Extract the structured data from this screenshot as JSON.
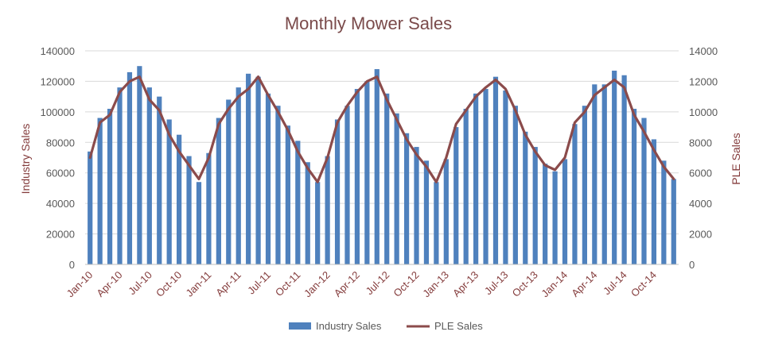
{
  "chart_data": {
    "type": "bar",
    "title": "Monthly Mower Sales",
    "ylabel": "Industry Sales",
    "y2label": "PLE Sales",
    "ylim": [
      0,
      140000
    ],
    "y2lim": [
      0,
      14000
    ],
    "yticks": [
      "0",
      "20000",
      "40000",
      "60000",
      "80000",
      "100000",
      "120000",
      "140000"
    ],
    "y2ticks": [
      "0",
      "2000",
      "4000",
      "6000",
      "8000",
      "10000",
      "12000",
      "14000"
    ],
    "x_tick_labels": [
      "Jan-10",
      "Apr-10",
      "Jul-10",
      "Oct-10",
      "Jan-11",
      "Apr-11",
      "Jul-11",
      "Oct-11",
      "Jan-12",
      "Apr-12",
      "Jul-12",
      "Oct-12",
      "Jan-13",
      "Apr-13",
      "Jul-13",
      "Oct-13",
      "Jan-14",
      "Apr-14",
      "Jul-14",
      "Oct-14"
    ],
    "categories": [
      "Jan-10",
      "Feb-10",
      "Mar-10",
      "Apr-10",
      "May-10",
      "Jun-10",
      "Jul-10",
      "Aug-10",
      "Sep-10",
      "Oct-10",
      "Nov-10",
      "Dec-10",
      "Jan-11",
      "Feb-11",
      "Mar-11",
      "Apr-11",
      "May-11",
      "Jun-11",
      "Jul-11",
      "Aug-11",
      "Sep-11",
      "Oct-11",
      "Nov-11",
      "Dec-11",
      "Jan-12",
      "Feb-12",
      "Mar-12",
      "Apr-12",
      "May-12",
      "Jun-12",
      "Jul-12",
      "Aug-12",
      "Sep-12",
      "Oct-12",
      "Nov-12",
      "Dec-12",
      "Jan-13",
      "Feb-13",
      "Mar-13",
      "Apr-13",
      "May-13",
      "Jun-13",
      "Jul-13",
      "Aug-13",
      "Sep-13",
      "Oct-13",
      "Nov-13",
      "Dec-13",
      "Jan-14",
      "Feb-14",
      "Mar-14",
      "Apr-14",
      "May-14",
      "Jun-14",
      "Jul-14",
      "Aug-14",
      "Sep-14",
      "Oct-14",
      "Nov-14",
      "Dec-14"
    ],
    "series": [
      {
        "name": "Industry Sales",
        "axis": "left",
        "style": "bar",
        "color": "#4f81bd",
        "values": [
          74000,
          96000,
          102000,
          116000,
          126000,
          130000,
          116000,
          110000,
          95000,
          85000,
          71000,
          54000,
          73000,
          96000,
          108000,
          116000,
          125000,
          123000,
          112000,
          104000,
          91000,
          81000,
          67000,
          54000,
          71000,
          95000,
          104000,
          115000,
          120000,
          128000,
          112000,
          99000,
          86000,
          77000,
          68000,
          54000,
          69000,
          90000,
          102000,
          112000,
          115000,
          123000,
          114000,
          104000,
          87000,
          77000,
          66000,
          61000,
          69000,
          92000,
          104000,
          118000,
          118000,
          127000,
          124000,
          102000,
          96000,
          82000,
          68000,
          56000
        ]
      },
      {
        "name": "PLE Sales",
        "axis": "right",
        "style": "line",
        "color": "#8b4b4b",
        "values": [
          7000,
          9300,
          9800,
          11300,
          12000,
          12300,
          10800,
          10100,
          8500,
          7400,
          6500,
          5600,
          7000,
          9200,
          10200,
          11000,
          11500,
          12300,
          11100,
          10000,
          8800,
          7400,
          6300,
          5400,
          7000,
          9300,
          10400,
          11300,
          12000,
          12300,
          10800,
          9500,
          8200,
          7200,
          6400,
          5400,
          7000,
          9200,
          10100,
          11000,
          11600,
          12100,
          11500,
          10100,
          8500,
          7400,
          6500,
          6200,
          7000,
          9300,
          10000,
          11100,
          11600,
          12100,
          11600,
          9800,
          8700,
          7500,
          6400,
          5600
        ]
      }
    ],
    "legend_position": "bottom",
    "grid": true
  }
}
